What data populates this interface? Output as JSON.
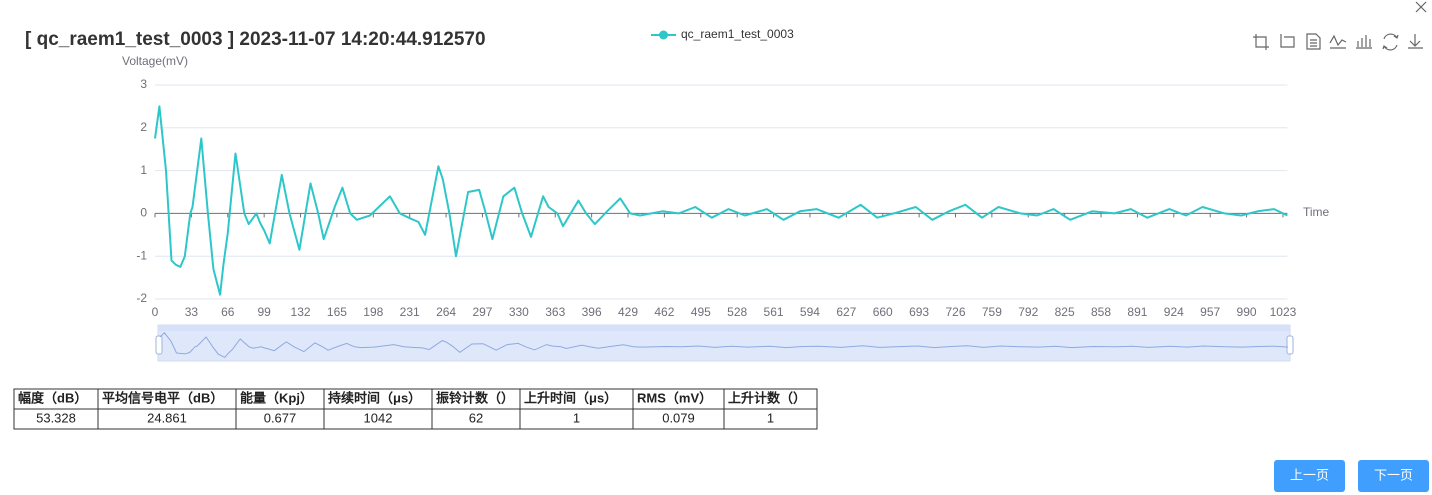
{
  "chart_data": {
    "type": "line",
    "title": "[ qc_raem1_test_0003 ] 2023-11-07 14:20:44.912570",
    "y_label": "Voltage(mV)",
    "x_label": "Time",
    "x": [
      0,
      4,
      10,
      15,
      19,
      23,
      27,
      32,
      34,
      42,
      48,
      53,
      59,
      62,
      66,
      73,
      81,
      85,
      92,
      95,
      99,
      104,
      115,
      122,
      131,
      141,
      148,
      153,
      163,
      170,
      177,
      183,
      195,
      213,
      222,
      230,
      239,
      245,
      257,
      261,
      267,
      273,
      284,
      294,
      300,
      306,
      316,
      326,
      333,
      341,
      352,
      357,
      365,
      370,
      384,
      391,
      399,
      410,
      422,
      431,
      440,
      460,
      475,
      490,
      505,
      520,
      535,
      555,
      570,
      585,
      600,
      620,
      640,
      655,
      670,
      690,
      705,
      720,
      735,
      750,
      765,
      785,
      800,
      815,
      830,
      850,
      870,
      885,
      900,
      920,
      935,
      950,
      970,
      985,
      1000,
      1015,
      1027
    ],
    "series": [
      {
        "name": "qc_raem1_test_0003",
        "color": "#2ec7c9",
        "values": [
          1.75,
          2.5,
          1.0,
          -1.1,
          -1.2,
          -1.25,
          -1.0,
          0,
          0.15,
          1.75,
          0,
          -1.3,
          -1.9,
          -1.2,
          -0.45,
          1.4,
          0,
          -0.25,
          0,
          -0.2,
          -0.4,
          -0.7,
          0.9,
          0,
          -0.85,
          0.7,
          0,
          -0.6,
          0.15,
          0.6,
          0,
          -0.15,
          -0.05,
          0.4,
          0,
          -0.1,
          -0.2,
          -0.5,
          1.1,
          0.8,
          0,
          -1.0,
          0.5,
          0.55,
          0,
          -0.6,
          0.4,
          0.6,
          0,
          -0.55,
          0.4,
          0.15,
          0,
          -0.3,
          0.3,
          0,
          -0.25,
          0.05,
          0.35,
          0,
          -0.05,
          0.05,
          0,
          0.15,
          -0.1,
          0.1,
          -0.05,
          0.1,
          -0.15,
          0.05,
          0.1,
          -0.1,
          0.2,
          -0.1,
          0,
          0.15,
          -0.15,
          0.05,
          0.2,
          -0.1,
          0.15,
          0,
          -0.05,
          0.1,
          -0.15,
          0.05,
          0,
          0.1,
          -0.1,
          0.1,
          -0.05,
          0.15,
          0,
          -0.05,
          0.05,
          0.1,
          -0.05
        ]
      }
    ],
    "xlim": [
      0,
      1027
    ],
    "ylim": [
      -2,
      3
    ],
    "xticks": [
      0,
      33,
      66,
      99,
      132,
      165,
      198,
      231,
      264,
      297,
      330,
      363,
      396,
      429,
      462,
      495,
      528,
      561,
      594,
      627,
      660,
      693,
      726,
      759,
      792,
      825,
      858,
      891,
      924,
      957,
      990,
      1023
    ],
    "yticks": [
      -2,
      -1,
      0,
      1,
      2,
      3
    ],
    "grid": true,
    "legend": "top"
  },
  "table": {
    "headers": [
      "幅度（dB）",
      "平均信号电平（dB）",
      "能量（Kpj）",
      "持续时间（μs）",
      "振铃计数（）",
      "上升时间（μs）",
      "RMS（mV）",
      "上升计数（）"
    ],
    "rows": [
      [
        53.328,
        24.861,
        0.677,
        1042,
        62,
        1,
        0.079,
        1
      ]
    ]
  },
  "buttons": [
    "上一页",
    "下一页"
  ]
}
